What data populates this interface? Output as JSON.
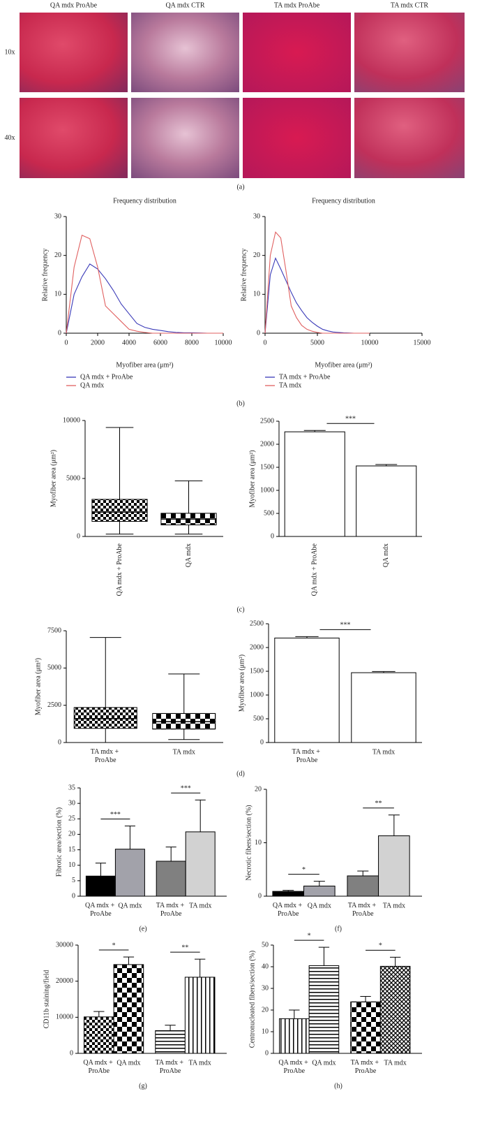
{
  "panel_a": {
    "columns": [
      "QA mdx ProAbe",
      "QA mdx CTR",
      "TA mdx ProAbe",
      "TA mdx CTR"
    ],
    "rows": [
      "10x",
      "40x"
    ]
  },
  "panel_labels": [
    "(a)",
    "(b)",
    "(c)",
    "(d)",
    "(e)",
    "(f)",
    "(g)",
    "(h)"
  ],
  "chart_data": [
    {
      "type": "line",
      "title": "Frequency distribution",
      "x_label": "Myofiber area (μm²)",
      "y_label": "Relative frequency",
      "x": [
        0,
        500,
        1000,
        1500,
        2000,
        2500,
        3000,
        3500,
        4000,
        4500,
        5000,
        5500,
        6000,
        6500,
        7000,
        7500,
        8000,
        8500,
        9000,
        9500,
        10000
      ],
      "series": [
        {
          "name": "QA mdx + ProAbe",
          "color": "#3a3ab8",
          "values": [
            0,
            10,
            14.5,
            17.8,
            16.5,
            14,
            11,
            7.5,
            5,
            2.5,
            1.5,
            1,
            0.7,
            0.4,
            0.2,
            0.1,
            0.1,
            0.05,
            0,
            0,
            0
          ]
        },
        {
          "name": "QA mdx",
          "color": "#e06060",
          "values": [
            0,
            17,
            25.2,
            24.3,
            17,
            7,
            5,
            3,
            1,
            0.5,
            0.2,
            0,
            0,
            0,
            0,
            0,
            0,
            0,
            0,
            0,
            0
          ]
        }
      ],
      "xlim": [
        0,
        10000
      ],
      "xticks": [
        0,
        2000,
        4000,
        6000,
        8000,
        10000
      ],
      "ylim": [
        0,
        30
      ],
      "yticks": [
        0,
        10,
        20,
        30
      ]
    },
    {
      "type": "line",
      "title": "Frequency distribution",
      "x_label": "Myofiber area (μm²)",
      "y_label": "Relative frequency",
      "x": [
        0,
        500,
        1000,
        1500,
        2000,
        2500,
        3000,
        3500,
        4000,
        4500,
        5000,
        5500,
        6000,
        6500,
        7000,
        7500,
        8000,
        8500,
        9000,
        9500,
        10000
      ],
      "series": [
        {
          "name": "TA mdx + ProAbe",
          "color": "#3a3ab8",
          "values": [
            0,
            15,
            19.3,
            16.5,
            13.5,
            10.5,
            7.8,
            5.8,
            4,
            2.8,
            1.8,
            1,
            0.6,
            0.3,
            0.2,
            0.1,
            0.05,
            0,
            0,
            0,
            0
          ]
        },
        {
          "name": "TA mdx",
          "color": "#e06060",
          "values": [
            0,
            20,
            26,
            24.5,
            16,
            7,
            4,
            2,
            1,
            0.5,
            0.2,
            0,
            0,
            0,
            0,
            0,
            0,
            0,
            0,
            0,
            0
          ]
        }
      ],
      "xlim": [
        0,
        15000
      ],
      "xticks": [
        0,
        5000,
        10000,
        15000
      ],
      "ylim": [
        0,
        30
      ],
      "yticks": [
        0,
        10,
        20,
        30
      ]
    },
    {
      "type": "box",
      "y_label": "Myofiber area (μm²)",
      "categories": [
        "QA mdx + ProAbe",
        "QA mdx"
      ],
      "boxes": [
        {
          "min": 200,
          "q1": 1300,
          "median": 2100,
          "q3": 3200,
          "max": 9400
        },
        {
          "min": 200,
          "q1": 1000,
          "median": 1500,
          "q3": 2000,
          "max": 4800
        }
      ],
      "patterns": [
        "checker",
        "checker-large"
      ],
      "ylim": [
        0,
        10000
      ],
      "yticks": [
        0,
        5000,
        10000
      ]
    },
    {
      "type": "bar",
      "y_label": "Myofiber area (μm²)",
      "categories": [
        "QA mdx + ProAbe",
        "QA mdx"
      ],
      "values": [
        2270,
        1530
      ],
      "errors": [
        30,
        30
      ],
      "colors": [
        "#ffffff",
        "#ffffff"
      ],
      "significance": [
        "***"
      ],
      "ylim": [
        0,
        2500
      ],
      "yticks": [
        0,
        500,
        1000,
        1500,
        2000,
        2500
      ]
    },
    {
      "type": "box",
      "y_label": "Myofiber area (μm²)",
      "categories": [
        "TA mdx + ProAbe",
        "TA mdx"
      ],
      "boxes": [
        {
          "min": 0,
          "q1": 950,
          "median": 1600,
          "q3": 2350,
          "max": 7050
        },
        {
          "min": 200,
          "q1": 900,
          "median": 1400,
          "q3": 1950,
          "max": 4600
        }
      ],
      "patterns": [
        "checker",
        "checker-large"
      ],
      "ylim": [
        0,
        7500
      ],
      "yticks": [
        0,
        2500,
        5000,
        7500
      ]
    },
    {
      "type": "bar",
      "y_label": "Myofiber area (μm²)",
      "categories": [
        "TA mdx + ProAbe",
        "TA mdx"
      ],
      "values": [
        2200,
        1470
      ],
      "errors": [
        30,
        25
      ],
      "colors": [
        "#ffffff",
        "#ffffff"
      ],
      "significance": [
        "***"
      ],
      "ylim": [
        0,
        2500
      ],
      "yticks": [
        0,
        500,
        1000,
        1500,
        2000,
        2500
      ]
    },
    {
      "type": "bar",
      "y_label": "Fibrotic area/section (%)",
      "categories": [
        "QA mdx + ProAbe",
        "QA mdx",
        "TA mdx + ProAbe",
        "TA mdx"
      ],
      "values": [
        6.5,
        15.2,
        11.3,
        20.8
      ],
      "errors": [
        4.2,
        7.5,
        4.6,
        10.3
      ],
      "colors": [
        "#000000",
        "#a2a2aa",
        "#808080",
        "#d2d2d2"
      ],
      "significance": [
        "***",
        "***"
      ],
      "ylim": [
        0,
        35
      ],
      "yticks": [
        0,
        5,
        10,
        15,
        20,
        25,
        30,
        35
      ]
    },
    {
      "type": "bar",
      "y_label": "Necrotic fibers/section (%)",
      "categories": [
        "QA mdx + ProAbe",
        "QA mdx",
        "TA mdx + ProAbe",
        "TA mdx"
      ],
      "values": [
        0.9,
        1.9,
        3.8,
        11.3
      ],
      "errors": [
        0.2,
        0.9,
        0.9,
        3.9
      ],
      "colors": [
        "#000000",
        "#a2a2aa",
        "#808080",
        "#d2d2d2"
      ],
      "significance": [
        "*",
        "**"
      ],
      "ylim": [
        0,
        20
      ],
      "yticks": [
        0,
        10,
        20
      ]
    },
    {
      "type": "bar",
      "y_label": "CD11b staining/field",
      "categories": [
        "QA mdx + ProAbe",
        "QA mdx",
        "TA mdx + ProAbe",
        "TA mdx"
      ],
      "values": [
        10100,
        24600,
        6300,
        21100
      ],
      "errors": [
        1500,
        2100,
        1500,
        5000
      ],
      "patterns": [
        "checker",
        "checker-large",
        "hlines",
        "vlines"
      ],
      "significance": [
        "*",
        "**"
      ],
      "ylim": [
        0,
        30000
      ],
      "yticks": [
        0,
        10000,
        20000,
        30000
      ]
    },
    {
      "type": "bar",
      "y_label": "Centronucleated fibers/section (%)",
      "categories": [
        "QA mdx + ProAbe",
        "QA mdx",
        "TA mdx + ProAbe",
        "TA mdx"
      ],
      "values": [
        16,
        40.5,
        23.8,
        40.2
      ],
      "errors": [
        4,
        8.5,
        2.5,
        4.2
      ],
      "patterns": [
        "vlines",
        "hlines",
        "checker-large",
        "crosshatch"
      ],
      "significance": [
        "*",
        "*"
      ],
      "ylim": [
        0,
        50
      ],
      "yticks": [
        0,
        10,
        20,
        30,
        40,
        50
      ]
    }
  ]
}
